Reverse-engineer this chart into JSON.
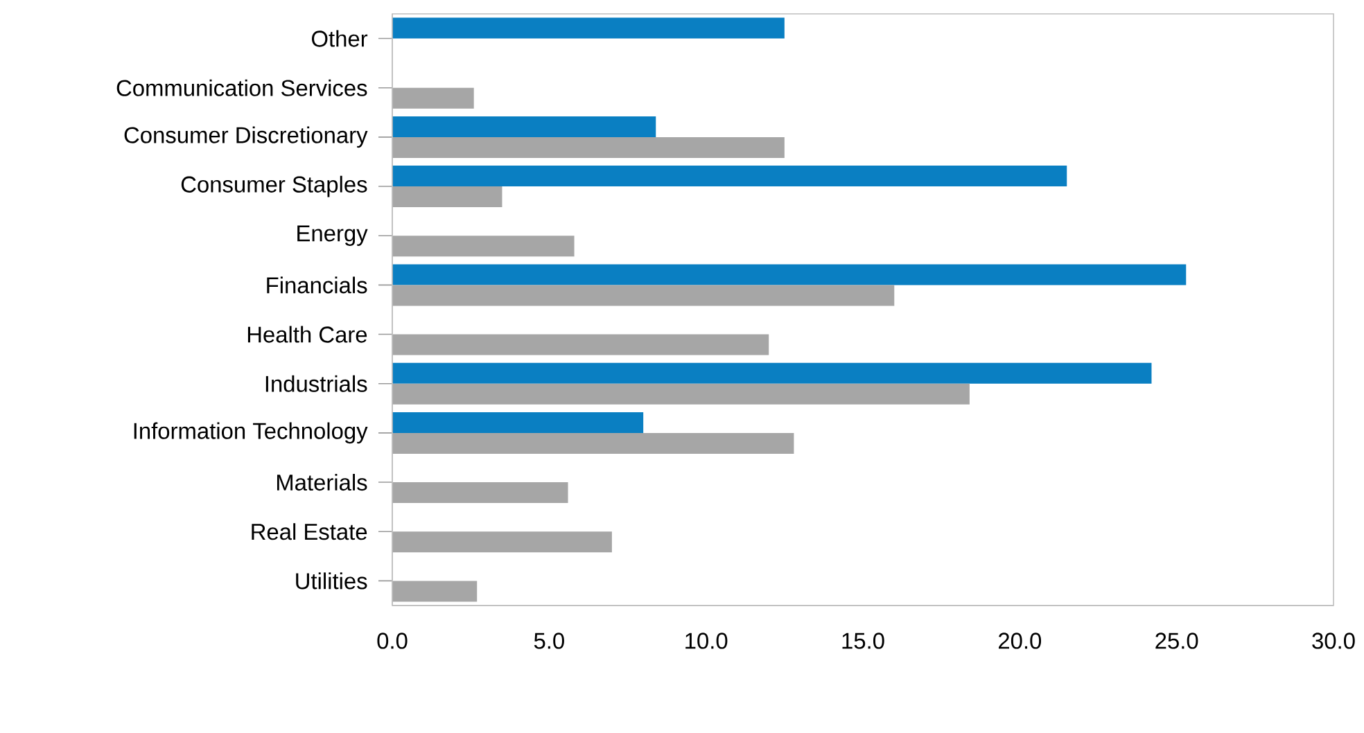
{
  "chart_data": {
    "type": "bar",
    "orientation": "horizontal",
    "categories": [
      "Other",
      "Communication Services",
      "Consumer Discretionary",
      "Consumer Staples",
      "Energy",
      "Financials",
      "Health Care",
      "Industrials",
      "Information Technology",
      "Materials",
      "Real Estate",
      "Utilities"
    ],
    "series": [
      {
        "color": "#0a7fc2",
        "values": [
          12.5,
          null,
          8.4,
          21.5,
          null,
          25.3,
          null,
          24.2,
          8.0,
          null,
          null,
          null
        ]
      },
      {
        "color": "#a6a6a6",
        "values": [
          null,
          2.6,
          12.5,
          3.5,
          5.8,
          16.0,
          12.0,
          18.4,
          12.8,
          5.6,
          7.0,
          2.7
        ]
      }
    ],
    "xlim": [
      0,
      30
    ],
    "xticks": [
      {
        "value": 0,
        "label": "0.0"
      },
      {
        "value": 5,
        "label": "5.0"
      },
      {
        "value": 10,
        "label": "10.0"
      },
      {
        "value": 15,
        "label": "15.0"
      },
      {
        "value": 20,
        "label": "20.0"
      },
      {
        "value": 25,
        "label": "25.0"
      },
      {
        "value": 30,
        "label": "30.0"
      }
    ]
  }
}
